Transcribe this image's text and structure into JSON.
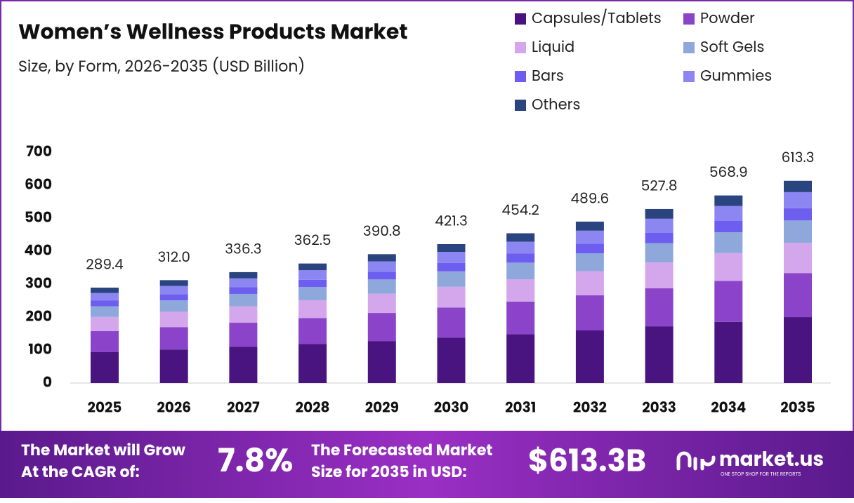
{
  "chart_data": {
    "type": "stacked_bar",
    "title": "Women’s Wellness Products Market",
    "subtitle": "Size, by Form, 2026-2035 (USD Billion)",
    "categories": [
      "2025",
      "2026",
      "2027",
      "2028",
      "2029",
      "2030",
      "2031",
      "2032",
      "2033",
      "2034",
      "2035"
    ],
    "series": [
      {
        "name": "Capsules/Tablets",
        "color": "#4a1480",
        "values": [
          94.3,
          101.7,
          109.6,
          118.2,
          127.4,
          137.3,
          148.1,
          159.6,
          172.1,
          185.5,
          199.9
        ]
      },
      {
        "name": "Powder",
        "color": "#8b44c9",
        "values": [
          63.1,
          68.0,
          73.3,
          79.0,
          85.2,
          91.8,
          99.0,
          106.7,
          115.1,
          124.0,
          133.7
        ]
      },
      {
        "name": "Liquid",
        "color": "#d4a6ec",
        "values": [
          43.1,
          46.5,
          50.1,
          54.0,
          58.2,
          62.8,
          67.7,
          72.9,
          78.6,
          84.8,
          91.4
        ]
      },
      {
        "name": "Soft Gels",
        "color": "#8fa8dc",
        "values": [
          32.1,
          34.6,
          37.3,
          40.2,
          43.4,
          46.8,
          50.4,
          54.3,
          58.6,
          63.1,
          68.1
        ]
      },
      {
        "name": "Bars",
        "color": "#6d5ef0",
        "values": [
          17.4,
          18.7,
          20.2,
          21.8,
          23.4,
          25.3,
          27.3,
          29.4,
          31.7,
          34.1,
          36.8
        ]
      },
      {
        "name": "Gummies",
        "color": "#8c86f2",
        "values": [
          23.2,
          25.0,
          26.9,
          29.0,
          31.3,
          33.7,
          36.3,
          39.2,
          42.2,
          45.5,
          49.1
        ]
      },
      {
        "name": "Others",
        "color": "#2a4480",
        "values": [
          16.2,
          17.5,
          18.9,
          20.3,
          21.9,
          23.6,
          25.4,
          27.5,
          29.5,
          31.9,
          34.3
        ]
      }
    ],
    "totals": {
      "values": [
        289.4,
        312.0,
        336.3,
        362.5,
        390.8,
        421.3,
        454.2,
        489.6,
        527.8,
        568.9,
        613.3
      ],
      "value_labels": [
        "289.4",
        "312.0",
        "336.3",
        "362.5",
        "390.8",
        "421.3",
        "454.2",
        "489.6",
        "527.8",
        "568.9",
        "613.3"
      ]
    },
    "ylim": [
      0,
      700
    ],
    "yticks": [
      0,
      100,
      200,
      300,
      400,
      500,
      600,
      700
    ],
    "grid": false
  },
  "footer": {
    "cagr_text": [
      "The Market will Grow",
      "At the CAGR of:"
    ],
    "cagr_value": "7.8%",
    "forecast_text": [
      "The Forecasted Market",
      "Size for 2035 in USD:"
    ],
    "forecast_value": "$613.3B",
    "brand": "market.us",
    "tagline": "ONE STOP SHOP FOR THE REPORTS"
  }
}
